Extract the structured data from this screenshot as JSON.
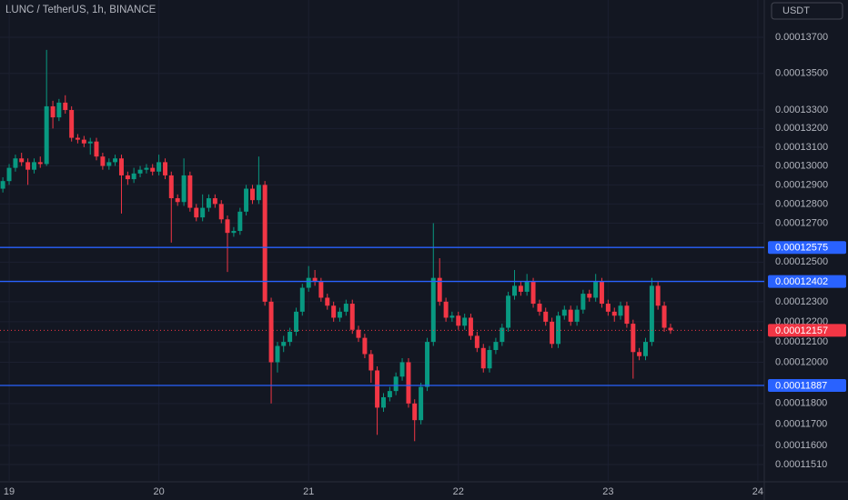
{
  "chart_data": {
    "type": "candlestick",
    "title": "LUNC / TetherUS, 1h, BINANCE",
    "button": "USDT",
    "log_scale": true,
    "grid": true,
    "up_color": "#089981",
    "down_color": "#f23645",
    "line_color": "#2962ff",
    "xlim": [
      18.939,
      24.043
    ],
    "xticks": [
      19,
      20,
      21,
      22,
      23,
      24
    ],
    "ylim": [
      0.00011429,
      0.0001391
    ],
    "yticks": [
      {
        "value": 0.000137,
        "label": "0.00013700"
      },
      {
        "value": 0.000135,
        "label": "0.00013500"
      },
      {
        "value": 0.000133,
        "label": "0.00013300"
      },
      {
        "value": 0.000132,
        "label": "0.00013200"
      },
      {
        "value": 0.000131,
        "label": "0.00013100"
      },
      {
        "value": 0.00013,
        "label": "0.00013000"
      },
      {
        "value": 0.000129,
        "label": "0.00012900"
      },
      {
        "value": 0.000128,
        "label": "0.00012800"
      },
      {
        "value": 0.000127,
        "label": "0.00012700"
      },
      {
        "value": 0.000125,
        "label": "0.00012500"
      },
      {
        "value": 0.000123,
        "label": "0.00012300"
      },
      {
        "value": 0.000122,
        "label": "0.00012200"
      },
      {
        "value": 0.000121,
        "label": "0.00012100"
      },
      {
        "value": 0.00012,
        "label": "0.00012000"
      },
      {
        "value": 0.000118,
        "label": "0.00011800"
      },
      {
        "value": 0.000117,
        "label": "0.00011700"
      },
      {
        "value": 0.000116,
        "label": "0.00011600"
      },
      {
        "value": 0.0001151,
        "label": "0.00011510"
      }
    ],
    "hlines": [
      0.00012575,
      0.00012402,
      0.00011887
    ],
    "x": [
      18.958,
      19,
      19.042,
      19.083,
      19.125,
      19.167,
      19.208,
      19.25,
      19.292,
      19.333,
      19.375,
      19.417,
      19.458,
      19.5,
      19.542,
      19.583,
      19.625,
      19.667,
      19.708,
      19.75,
      19.792,
      19.833,
      19.875,
      19.917,
      19.958,
      20,
      20.042,
      20.083,
      20.125,
      20.167,
      20.208,
      20.25,
      20.292,
      20.333,
      20.375,
      20.417,
      20.458,
      20.5,
      20.542,
      20.583,
      20.625,
      20.667,
      20.708,
      20.75,
      20.792,
      20.833,
      20.875,
      20.917,
      20.958,
      21,
      21.042,
      21.083,
      21.125,
      21.167,
      21.208,
      21.25,
      21.292,
      21.333,
      21.375,
      21.417,
      21.458,
      21.5,
      21.542,
      21.583,
      21.625,
      21.667,
      21.708,
      21.75,
      21.792,
      21.833,
      21.875,
      21.917,
      21.958,
      22,
      22.042,
      22.083,
      22.125,
      22.167,
      22.208,
      22.25,
      22.292,
      22.333,
      22.375,
      22.417,
      22.458,
      22.5,
      22.542,
      22.583,
      22.625,
      22.667,
      22.708,
      22.75,
      22.792,
      22.833,
      22.875,
      22.917,
      22.958,
      23,
      23.042,
      23.083,
      23.125,
      23.167,
      23.208,
      23.25,
      23.292,
      23.333,
      23.375,
      23.417
    ],
    "open": [
      0.0001288,
      0.0001292,
      0.0001299,
      0.0001304,
      0.0001302,
      0.0001298,
      0.0001302,
      0.0001301,
      0.0001332,
      0.0001326,
      0.0001334,
      0.000133,
      0.0001315,
      0.0001314,
      0.0001312,
      0.0001313,
      0.0001305,
      0.00013,
      0.0001302,
      0.0001304,
      0.0001295,
      0.0001293,
      0.0001296,
      0.0001298,
      0.0001299,
      0.0001297,
      0.0001302,
      0.0001295,
      0.0001283,
      0.0001281,
      0.0001295,
      0.0001278,
      0.0001273,
      0.0001278,
      0.0001283,
      0.000128,
      0.0001272,
      0.0001265,
      0.0001266,
      0.0001276,
      0.0001288,
      0.0001282,
      0.000129,
      0.000123,
      0.00012,
      0.0001208,
      0.000121,
      0.0001215,
      0.0001225,
      0.0001237,
      0.0001242,
      0.000124,
      0.0001232,
      0.0001228,
      0.0001222,
      0.0001225,
      0.0001229,
      0.0001216,
      0.0001212,
      0.0001204,
      0.0001196,
      0.0001178,
      0.0001183,
      0.0001186,
      0.0001193,
      0.00012,
      0.000118,
      0.0001172,
      0.0001188,
      0.000121,
      0.0001242,
      0.000123,
      0.0001222,
      0.0001223,
      0.0001218,
      0.0001222,
      0.0001213,
      0.0001207,
      0.0001197,
      0.0001206,
      0.000121,
      0.0001217,
      0.0001233,
      0.0001238,
      0.0001235,
      0.000124,
      0.0001229,
      0.0001225,
      0.000122,
      0.0001209,
      0.0001223,
      0.0001226,
      0.000122,
      0.0001226,
      0.0001234,
      0.0001232,
      0.000124,
      0.0001229,
      0.0001225,
      0.0001223,
      0.0001228,
      0.0001219,
      0.0001205,
      0.0001203,
      0.000121,
      0.0001238,
      0.0001228,
      0.0001217
    ],
    "high": [
      0.0001294,
      0.0001301,
      0.0001306,
      0.0001307,
      0.0001304,
      0.0001304,
      0.0001305,
      0.0001363,
      0.0001335,
      0.0001336,
      0.0001338,
      0.0001332,
      0.0001317,
      0.0001316,
      0.0001315,
      0.0001315,
      0.0001307,
      0.0001304,
      0.0001306,
      0.0001306,
      0.0001297,
      0.0001299,
      0.00013,
      0.0001301,
      0.0001301,
      0.0001306,
      0.0001304,
      0.0001297,
      0.0001285,
      0.0001304,
      0.0001297,
      0.000128,
      0.0001285,
      0.0001285,
      0.0001285,
      0.0001282,
      0.0001274,
      0.0001268,
      0.0001278,
      0.000129,
      0.000129,
      0.0001305,
      0.0001292,
      0.0001232,
      0.000121,
      0.0001213,
      0.0001217,
      0.0001227,
      0.0001239,
      0.0001248,
      0.0001246,
      0.0001242,
      0.0001234,
      0.000123,
      0.0001227,
      0.0001231,
      0.0001231,
      0.0001218,
      0.0001214,
      0.0001206,
      0.0001198,
      0.0001185,
      0.0001188,
      0.0001195,
      0.0001202,
      0.0001202,
      0.0001182,
      0.000119,
      0.0001212,
      0.000127,
      0.0001252,
      0.0001232,
      0.0001225,
      0.0001225,
      0.0001224,
      0.0001224,
      0.0001215,
      0.0001209,
      0.0001208,
      0.0001212,
      0.0001219,
      0.0001235,
      0.0001246,
      0.000124,
      0.0001244,
      0.0001242,
      0.0001231,
      0.0001227,
      0.0001222,
      0.0001225,
      0.0001228,
      0.0001228,
      0.0001228,
      0.0001236,
      0.0001236,
      0.0001244,
      0.0001242,
      0.0001231,
      0.0001227,
      0.000123,
      0.000123,
      0.0001221,
      0.0001207,
      0.0001212,
      0.0001242,
      0.000124,
      0.000123,
      0.0001219
    ],
    "low": [
      0.0001286,
      0.000129,
      0.0001297,
      0.00013,
      0.000129,
      0.0001296,
      0.0001299,
      0.00013,
      0.000132,
      0.0001324,
      0.0001328,
      0.0001313,
      0.0001312,
      0.000131,
      0.0001306,
      0.0001303,
      0.0001298,
      0.0001298,
      0.00013,
      0.0001275,
      0.000129,
      0.0001291,
      0.0001294,
      0.0001296,
      0.0001295,
      0.0001295,
      0.0001293,
      0.000126,
      0.0001279,
      0.0001279,
      0.0001276,
      0.0001271,
      0.0001271,
      0.0001276,
      0.0001278,
      0.000127,
      0.0001245,
      0.0001263,
      0.0001264,
      0.0001274,
      0.000128,
      0.000128,
      0.0001228,
      0.000118,
      0.0001195,
      0.0001205,
      0.0001208,
      0.0001213,
      0.0001223,
      0.0001235,
      0.0001238,
      0.000123,
      0.0001226,
      0.000122,
      0.000122,
      0.0001223,
      0.0001214,
      0.000121,
      0.0001202,
      0.000119,
      0.0001165,
      0.0001176,
      0.0001181,
      0.0001184,
      0.0001191,
      0.0001178,
      0.0001162,
      0.000117,
      0.0001186,
      0.0001208,
      0.0001228,
      0.000122,
      0.000122,
      0.0001216,
      0.0001216,
      0.0001211,
      0.0001205,
      0.0001195,
      0.0001195,
      0.0001204,
      0.0001208,
      0.0001215,
      0.0001231,
      0.0001233,
      0.0001233,
      0.0001227,
      0.0001223,
      0.0001218,
      0.0001207,
      0.0001207,
      0.0001221,
      0.0001218,
      0.0001218,
      0.0001224,
      0.000123,
      0.000123,
      0.0001227,
      0.0001223,
      0.000122,
      0.0001221,
      0.0001217,
      0.0001192,
      0.0001201,
      0.0001201,
      0.0001208,
      0.0001226,
      0.0001215,
      0.0001214
    ],
    "close": [
      0.0001292,
      0.0001299,
      0.0001304,
      0.0001302,
      0.0001298,
      0.0001302,
      0.0001301,
      0.0001332,
      0.0001326,
      0.0001334,
      0.000133,
      0.0001315,
      0.0001314,
      0.0001312,
      0.0001313,
      0.0001305,
      0.00013,
      0.0001302,
      0.0001304,
      0.0001295,
      0.0001293,
      0.0001296,
      0.0001298,
      0.0001299,
      0.0001297,
      0.0001302,
      0.0001295,
      0.0001283,
      0.0001281,
      0.0001295,
      0.0001278,
      0.0001273,
      0.0001278,
      0.0001283,
      0.000128,
      0.0001272,
      0.0001265,
      0.0001266,
      0.0001276,
      0.0001288,
      0.0001282,
      0.000129,
      0.000123,
      0.00012,
      0.0001208,
      0.000121,
      0.0001215,
      0.0001225,
      0.0001237,
      0.0001242,
      0.000124,
      0.0001232,
      0.0001228,
      0.0001222,
      0.0001225,
      0.0001229,
      0.0001216,
      0.0001212,
      0.0001204,
      0.0001196,
      0.0001178,
      0.0001183,
      0.0001186,
      0.0001193,
      0.00012,
      0.000118,
      0.0001172,
      0.0001188,
      0.000121,
      0.0001242,
      0.000123,
      0.0001222,
      0.0001223,
      0.0001218,
      0.0001222,
      0.0001213,
      0.0001207,
      0.0001197,
      0.0001206,
      0.000121,
      0.0001217,
      0.0001233,
      0.0001238,
      0.0001235,
      0.000124,
      0.0001229,
      0.0001225,
      0.000122,
      0.0001209,
      0.0001223,
      0.0001226,
      0.000122,
      0.0001226,
      0.0001234,
      0.0001232,
      0.000124,
      0.0001229,
      0.0001225,
      0.0001223,
      0.0001228,
      0.0001219,
      0.0001205,
      0.0001203,
      0.000121,
      0.0001238,
      0.0001228,
      0.0001217,
      0.00012157
    ]
  }
}
